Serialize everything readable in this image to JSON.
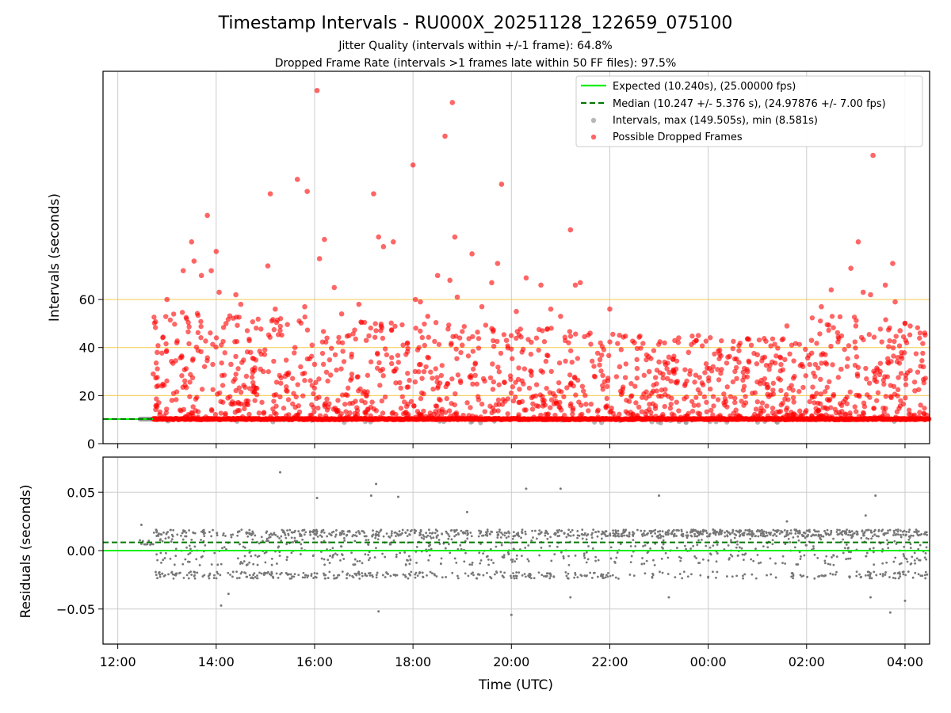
{
  "chart_data": [
    {
      "type": "scatter",
      "title": "Timestamp Intervals - RU000X_20251128_122659_075100",
      "subtitle_1": "Jitter Quality (intervals within +/-1 frame): 64.8%",
      "subtitle_2": "Dropped Frame Rate (intervals >1 frames late within 50 FF files): 97.5%",
      "xlabel": "",
      "ylabel": "Intervals (seconds)",
      "ylim": [
        0,
        155
      ],
      "yticks": [
        "0",
        "20",
        "40",
        "60"
      ],
      "hlines": [
        20,
        40,
        60
      ],
      "hline_color": "#f5c94a",
      "grid": true,
      "legend_position": "top-right",
      "legend": {
        "expected": "Expected (10.240s), (25.00000 fps)",
        "median": "Median (10.247 +/- 5.376 s), (24.97876 +/- 7.00 fps)",
        "intervals": "Intervals, max (149.505s), min (8.581s)",
        "dropped": "Possible Dropped Frames"
      },
      "series": [
        {
          "name": "Expected (10.240s), (25.00000 fps)",
          "value": 10.24,
          "color": "#00ee00"
        },
        {
          "name": "Median (10.247 +/- 5.376 s), (24.97876 +/- 7.00 fps)",
          "value": 10.247,
          "color": "#007700"
        },
        {
          "name": "Intervals, max (149.505s), min (8.581s)",
          "baseline": 10.24,
          "min": 8.581,
          "max": 149.505,
          "color": "#999999"
        },
        {
          "name": "Possible Dropped Frames",
          "color": "#ff0000",
          "points_hours_utc": [
            [
              12.72,
              29
            ],
            [
              12.8,
              38
            ],
            [
              12.9,
              24
            ],
            [
              13.0,
              60
            ],
            [
              13.1,
              18
            ],
            [
              13.2,
              42
            ],
            [
              13.3,
              36
            ],
            [
              13.33,
              72
            ],
            [
              13.5,
              84
            ],
            [
              13.55,
              76
            ],
            [
              13.7,
              70
            ],
            [
              13.82,
              95
            ],
            [
              13.9,
              72
            ],
            [
              14.0,
              80
            ],
            [
              14.06,
              63
            ],
            [
              14.2,
              50
            ],
            [
              14.3,
              33
            ],
            [
              14.4,
              62
            ],
            [
              14.5,
              58
            ],
            [
              14.7,
              38
            ],
            [
              14.9,
              31
            ],
            [
              15.05,
              74
            ],
            [
              15.1,
              104
            ],
            [
              15.2,
              56
            ],
            [
              15.4,
              28
            ],
            [
              15.6,
              40
            ],
            [
              15.65,
              110
            ],
            [
              15.8,
              57
            ],
            [
              15.85,
              105
            ],
            [
              15.95,
              41
            ],
            [
              16.0,
              33
            ],
            [
              16.05,
              147
            ],
            [
              16.1,
              77
            ],
            [
              16.2,
              85
            ],
            [
              16.4,
              65
            ],
            [
              16.55,
              54
            ],
            [
              16.7,
              45
            ],
            [
              16.9,
              58
            ],
            [
              17.05,
              43
            ],
            [
              17.2,
              104
            ],
            [
              17.3,
              86
            ],
            [
              17.4,
              82
            ],
            [
              17.6,
              84
            ],
            [
              17.8,
              41
            ],
            [
              18.0,
              116
            ],
            [
              18.05,
              60
            ],
            [
              18.15,
              59
            ],
            [
              18.3,
              53
            ],
            [
              18.5,
              70
            ],
            [
              18.65,
              128
            ],
            [
              18.75,
              68
            ],
            [
              18.8,
              142
            ],
            [
              18.85,
              86
            ],
            [
              18.9,
              61
            ],
            [
              19.0,
              41
            ],
            [
              19.2,
              79
            ],
            [
              19.4,
              57
            ],
            [
              19.6,
              67
            ],
            [
              19.72,
              75
            ],
            [
              19.8,
              108
            ],
            [
              19.9,
              43
            ],
            [
              20.1,
              55
            ],
            [
              20.3,
              69
            ],
            [
              20.6,
              66
            ],
            [
              20.8,
              56
            ],
            [
              21.0,
              53
            ],
            [
              21.2,
              89
            ],
            [
              21.3,
              66
            ],
            [
              21.4,
              67
            ],
            [
              21.6,
              46
            ],
            [
              21.8,
              35
            ],
            [
              22.0,
              56
            ],
            [
              22.2,
              32
            ],
            [
              22.5,
              42
            ],
            [
              22.8,
              30
            ],
            [
              23.0,
              34
            ],
            [
              23.2,
              36
            ],
            [
              23.4,
              44
            ],
            [
              23.6,
              38
            ],
            [
              23.8,
              45
            ],
            [
              24.1,
              32
            ],
            [
              24.4,
              36
            ],
            [
              24.8,
              30
            ],
            [
              25.0,
              37
            ],
            [
              25.3,
              34
            ],
            [
              25.6,
              49
            ],
            [
              25.9,
              33
            ],
            [
              26.1,
              43
            ],
            [
              26.3,
              57
            ],
            [
              26.5,
              64
            ],
            [
              26.7,
              31
            ],
            [
              26.9,
              73
            ],
            [
              27.0,
              49
            ],
            [
              27.05,
              84
            ],
            [
              27.15,
              63
            ],
            [
              27.3,
              62
            ],
            [
              27.35,
              120
            ],
            [
              27.6,
              66
            ],
            [
              27.75,
              75
            ],
            [
              27.8,
              59
            ],
            [
              27.9,
              47
            ],
            [
              28.0,
              50
            ],
            [
              28.2,
              22
            ],
            [
              28.3,
              13
            ]
          ]
        }
      ]
    },
    {
      "type": "scatter",
      "xlabel": "Time (UTC)",
      "ylabel": "Residuals (seconds)",
      "ylim": [
        -0.08,
        0.08
      ],
      "yticks": [
        "0.05",
        "0.00",
        "−0.05"
      ],
      "xticks": [
        "12:00",
        "14:00",
        "16:00",
        "18:00",
        "20:00",
        "22:00",
        "00:00",
        "02:00",
        "04:00"
      ],
      "x_range_hours": [
        11.7,
        28.5
      ],
      "grid": true,
      "series": [
        {
          "name": "Expected",
          "value": 0.0,
          "color": "#00ee00"
        },
        {
          "name": "Median",
          "value": 0.007,
          "color": "#007700"
        },
        {
          "name": "Residuals",
          "color": "#777777",
          "bands": [
            0.015,
            0.0,
            -0.021
          ],
          "outliers_hours": [
            [
              12.48,
              0.022
            ],
            [
              14.1,
              -0.047
            ],
            [
              14.25,
              -0.037
            ],
            [
              15.3,
              0.067
            ],
            [
              16.05,
              0.045
            ],
            [
              17.15,
              0.047
            ],
            [
              17.25,
              0.057
            ],
            [
              17.3,
              -0.052
            ],
            [
              17.7,
              0.046
            ],
            [
              19.1,
              0.033
            ],
            [
              20.0,
              -0.055
            ],
            [
              20.3,
              0.053
            ],
            [
              21.0,
              0.053
            ],
            [
              21.2,
              -0.04
            ],
            [
              23.0,
              0.047
            ],
            [
              23.2,
              -0.04
            ],
            [
              24.1,
              0.018
            ],
            [
              25.6,
              0.025
            ],
            [
              27.2,
              0.03
            ],
            [
              27.4,
              0.047
            ],
            [
              27.7,
              -0.053
            ],
            [
              27.3,
              -0.04
            ],
            [
              28.0,
              -0.043
            ]
          ]
        }
      ]
    }
  ]
}
